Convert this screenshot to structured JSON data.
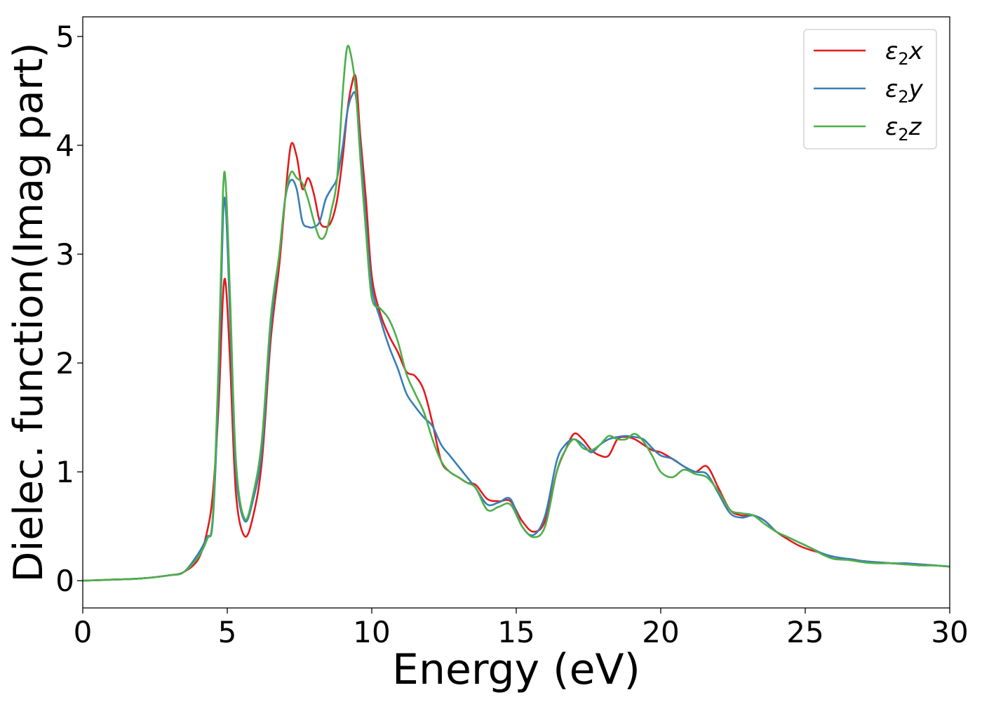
{
  "chart_data": {
    "type": "line",
    "xlabel": "Energy (eV)",
    "ylabel": "Dielec. function(Imag part)",
    "xlim": [
      0,
      30
    ],
    "ylim": [
      -0.25,
      5.18
    ],
    "xticks": [
      0,
      5,
      10,
      15,
      20,
      25,
      30
    ],
    "yticks": [
      0,
      1,
      2,
      3,
      4,
      5
    ],
    "grid": false,
    "legend_position": "top-right",
    "x": [
      0,
      1,
      2,
      3,
      3.5,
      4,
      4.3,
      4.5,
      4.7,
      4.85,
      4.95,
      5.1,
      5.3,
      5.6,
      5.9,
      6.2,
      6.5,
      6.8,
      7.0,
      7.2,
      7.4,
      7.6,
      7.8,
      8.0,
      8.2,
      8.4,
      8.6,
      8.8,
      9.0,
      9.15,
      9.3,
      9.45,
      9.6,
      9.8,
      10.0,
      10.3,
      10.6,
      10.9,
      11.2,
      11.5,
      11.8,
      12.1,
      12.4,
      12.7,
      13.0,
      13.3,
      13.6,
      14.0,
      14.4,
      14.8,
      15.2,
      15.6,
      16.0,
      16.4,
      16.7,
      17.0,
      17.3,
      17.6,
      17.9,
      18.2,
      18.5,
      18.8,
      19.1,
      19.4,
      19.7,
      20.0,
      20.4,
      20.8,
      21.2,
      21.6,
      22.0,
      22.4,
      22.8,
      23.2,
      23.6,
      24.0,
      24.4,
      24.8,
      25.2,
      25.6,
      26.0,
      26.5,
      27.0,
      27.5,
      28.0,
      28.5,
      29.0,
      29.5,
      30.0
    ],
    "series": [
      {
        "name": "ε₂x",
        "color": "#e41a1c",
        "values": [
          0,
          0.01,
          0.02,
          0.05,
          0.08,
          0.2,
          0.45,
          0.8,
          1.6,
          2.6,
          2.72,
          2.0,
          0.8,
          0.41,
          0.6,
          1.1,
          2.2,
          2.9,
          3.5,
          4.0,
          3.9,
          3.6,
          3.7,
          3.55,
          3.3,
          3.25,
          3.3,
          3.5,
          3.9,
          4.3,
          4.55,
          4.62,
          4.1,
          3.5,
          2.8,
          2.45,
          2.25,
          2.1,
          1.92,
          1.88,
          1.75,
          1.45,
          1.1,
          1.0,
          0.95,
          0.9,
          0.88,
          0.75,
          0.73,
          0.73,
          0.55,
          0.45,
          0.55,
          1.0,
          1.2,
          1.35,
          1.3,
          1.2,
          1.15,
          1.15,
          1.3,
          1.32,
          1.3,
          1.25,
          1.2,
          1.18,
          1.12,
          1.05,
          1.0,
          1.05,
          0.85,
          0.65,
          0.6,
          0.6,
          0.55,
          0.45,
          0.38,
          0.32,
          0.28,
          0.25,
          0.2,
          0.2,
          0.18,
          0.17,
          0.16,
          0.15,
          0.15,
          0.14,
          0.13
        ]
      },
      {
        "name": "ε₂y",
        "color": "#377eb8",
        "values": [
          0,
          0.01,
          0.02,
          0.05,
          0.08,
          0.25,
          0.4,
          0.55,
          1.8,
          3.3,
          3.42,
          2.4,
          1.0,
          0.55,
          0.75,
          1.2,
          2.3,
          3.0,
          3.5,
          3.68,
          3.6,
          3.3,
          3.25,
          3.25,
          3.3,
          3.5,
          3.6,
          3.7,
          4.0,
          4.3,
          4.45,
          4.45,
          4.0,
          3.3,
          2.7,
          2.4,
          2.15,
          1.95,
          1.72,
          1.6,
          1.5,
          1.42,
          1.25,
          1.15,
          1.05,
          0.95,
          0.85,
          0.7,
          0.72,
          0.75,
          0.5,
          0.42,
          0.6,
          1.1,
          1.25,
          1.3,
          1.25,
          1.18,
          1.25,
          1.3,
          1.32,
          1.33,
          1.32,
          1.3,
          1.22,
          1.15,
          1.12,
          1.05,
          1.0,
          0.98,
          0.8,
          0.62,
          0.58,
          0.6,
          0.55,
          0.45,
          0.4,
          0.35,
          0.3,
          0.25,
          0.22,
          0.2,
          0.18,
          0.17,
          0.16,
          0.16,
          0.15,
          0.14,
          0.13
        ]
      },
      {
        "name": "ε₂z",
        "color": "#4daf4a",
        "values": [
          0,
          0.01,
          0.02,
          0.05,
          0.08,
          0.22,
          0.38,
          0.6,
          2.0,
          3.55,
          3.64,
          2.6,
          1.1,
          0.57,
          0.8,
          1.3,
          2.4,
          3.0,
          3.5,
          3.75,
          3.7,
          3.65,
          3.5,
          3.3,
          3.15,
          3.18,
          3.4,
          3.7,
          4.5,
          4.9,
          4.8,
          4.5,
          3.9,
          3.2,
          2.6,
          2.5,
          2.4,
          2.2,
          1.9,
          1.72,
          1.55,
          1.3,
          1.1,
          1.0,
          0.95,
          0.9,
          0.85,
          0.65,
          0.68,
          0.7,
          0.5,
          0.4,
          0.5,
          1.0,
          1.2,
          1.3,
          1.22,
          1.2,
          1.25,
          1.33,
          1.3,
          1.3,
          1.35,
          1.28,
          1.15,
          1.0,
          0.95,
          1.02,
          0.98,
          0.95,
          0.82,
          0.65,
          0.62,
          0.6,
          0.52,
          0.45,
          0.4,
          0.35,
          0.3,
          0.24,
          0.2,
          0.19,
          0.17,
          0.16,
          0.16,
          0.15,
          0.14,
          0.14,
          0.13
        ]
      }
    ]
  }
}
